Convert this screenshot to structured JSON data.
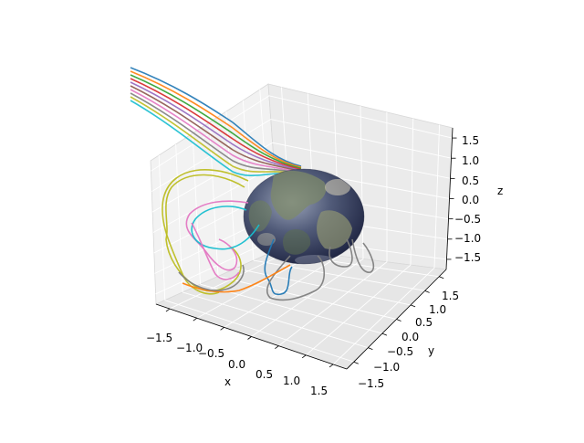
{
  "chart_data": {
    "type": "line",
    "projection": "3d",
    "title": "",
    "xlabel": "x",
    "ylabel": "y",
    "zlabel": "z",
    "xlim": [
      -1.75,
      1.75
    ],
    "ylim": [
      -1.75,
      1.75
    ],
    "zlim": [
      -1.75,
      1.75
    ],
    "xticks": [
      "−1.5",
      "−1.0",
      "−0.5",
      "0.0",
      "0.5",
      "1.0",
      "1.5"
    ],
    "yticks": [
      "−1.5",
      "−1.0",
      "−0.5",
      "0.0",
      "0.5",
      "1.0",
      "1.5"
    ],
    "zticks": [
      "−1.5",
      "−1.0",
      "−0.5",
      "0.0",
      "0.5",
      "1.0",
      "1.5"
    ],
    "grid": true,
    "surface": {
      "shape": "sphere",
      "radius": 1.0,
      "texture": "earth"
    },
    "series_colors": [
      "#1f77b4",
      "#ff7f0e",
      "#2ca02c",
      "#d62728",
      "#9467bd",
      "#8c564b",
      "#e377c2",
      "#7f7f7f",
      "#bcbd22",
      "#17becf"
    ]
  }
}
